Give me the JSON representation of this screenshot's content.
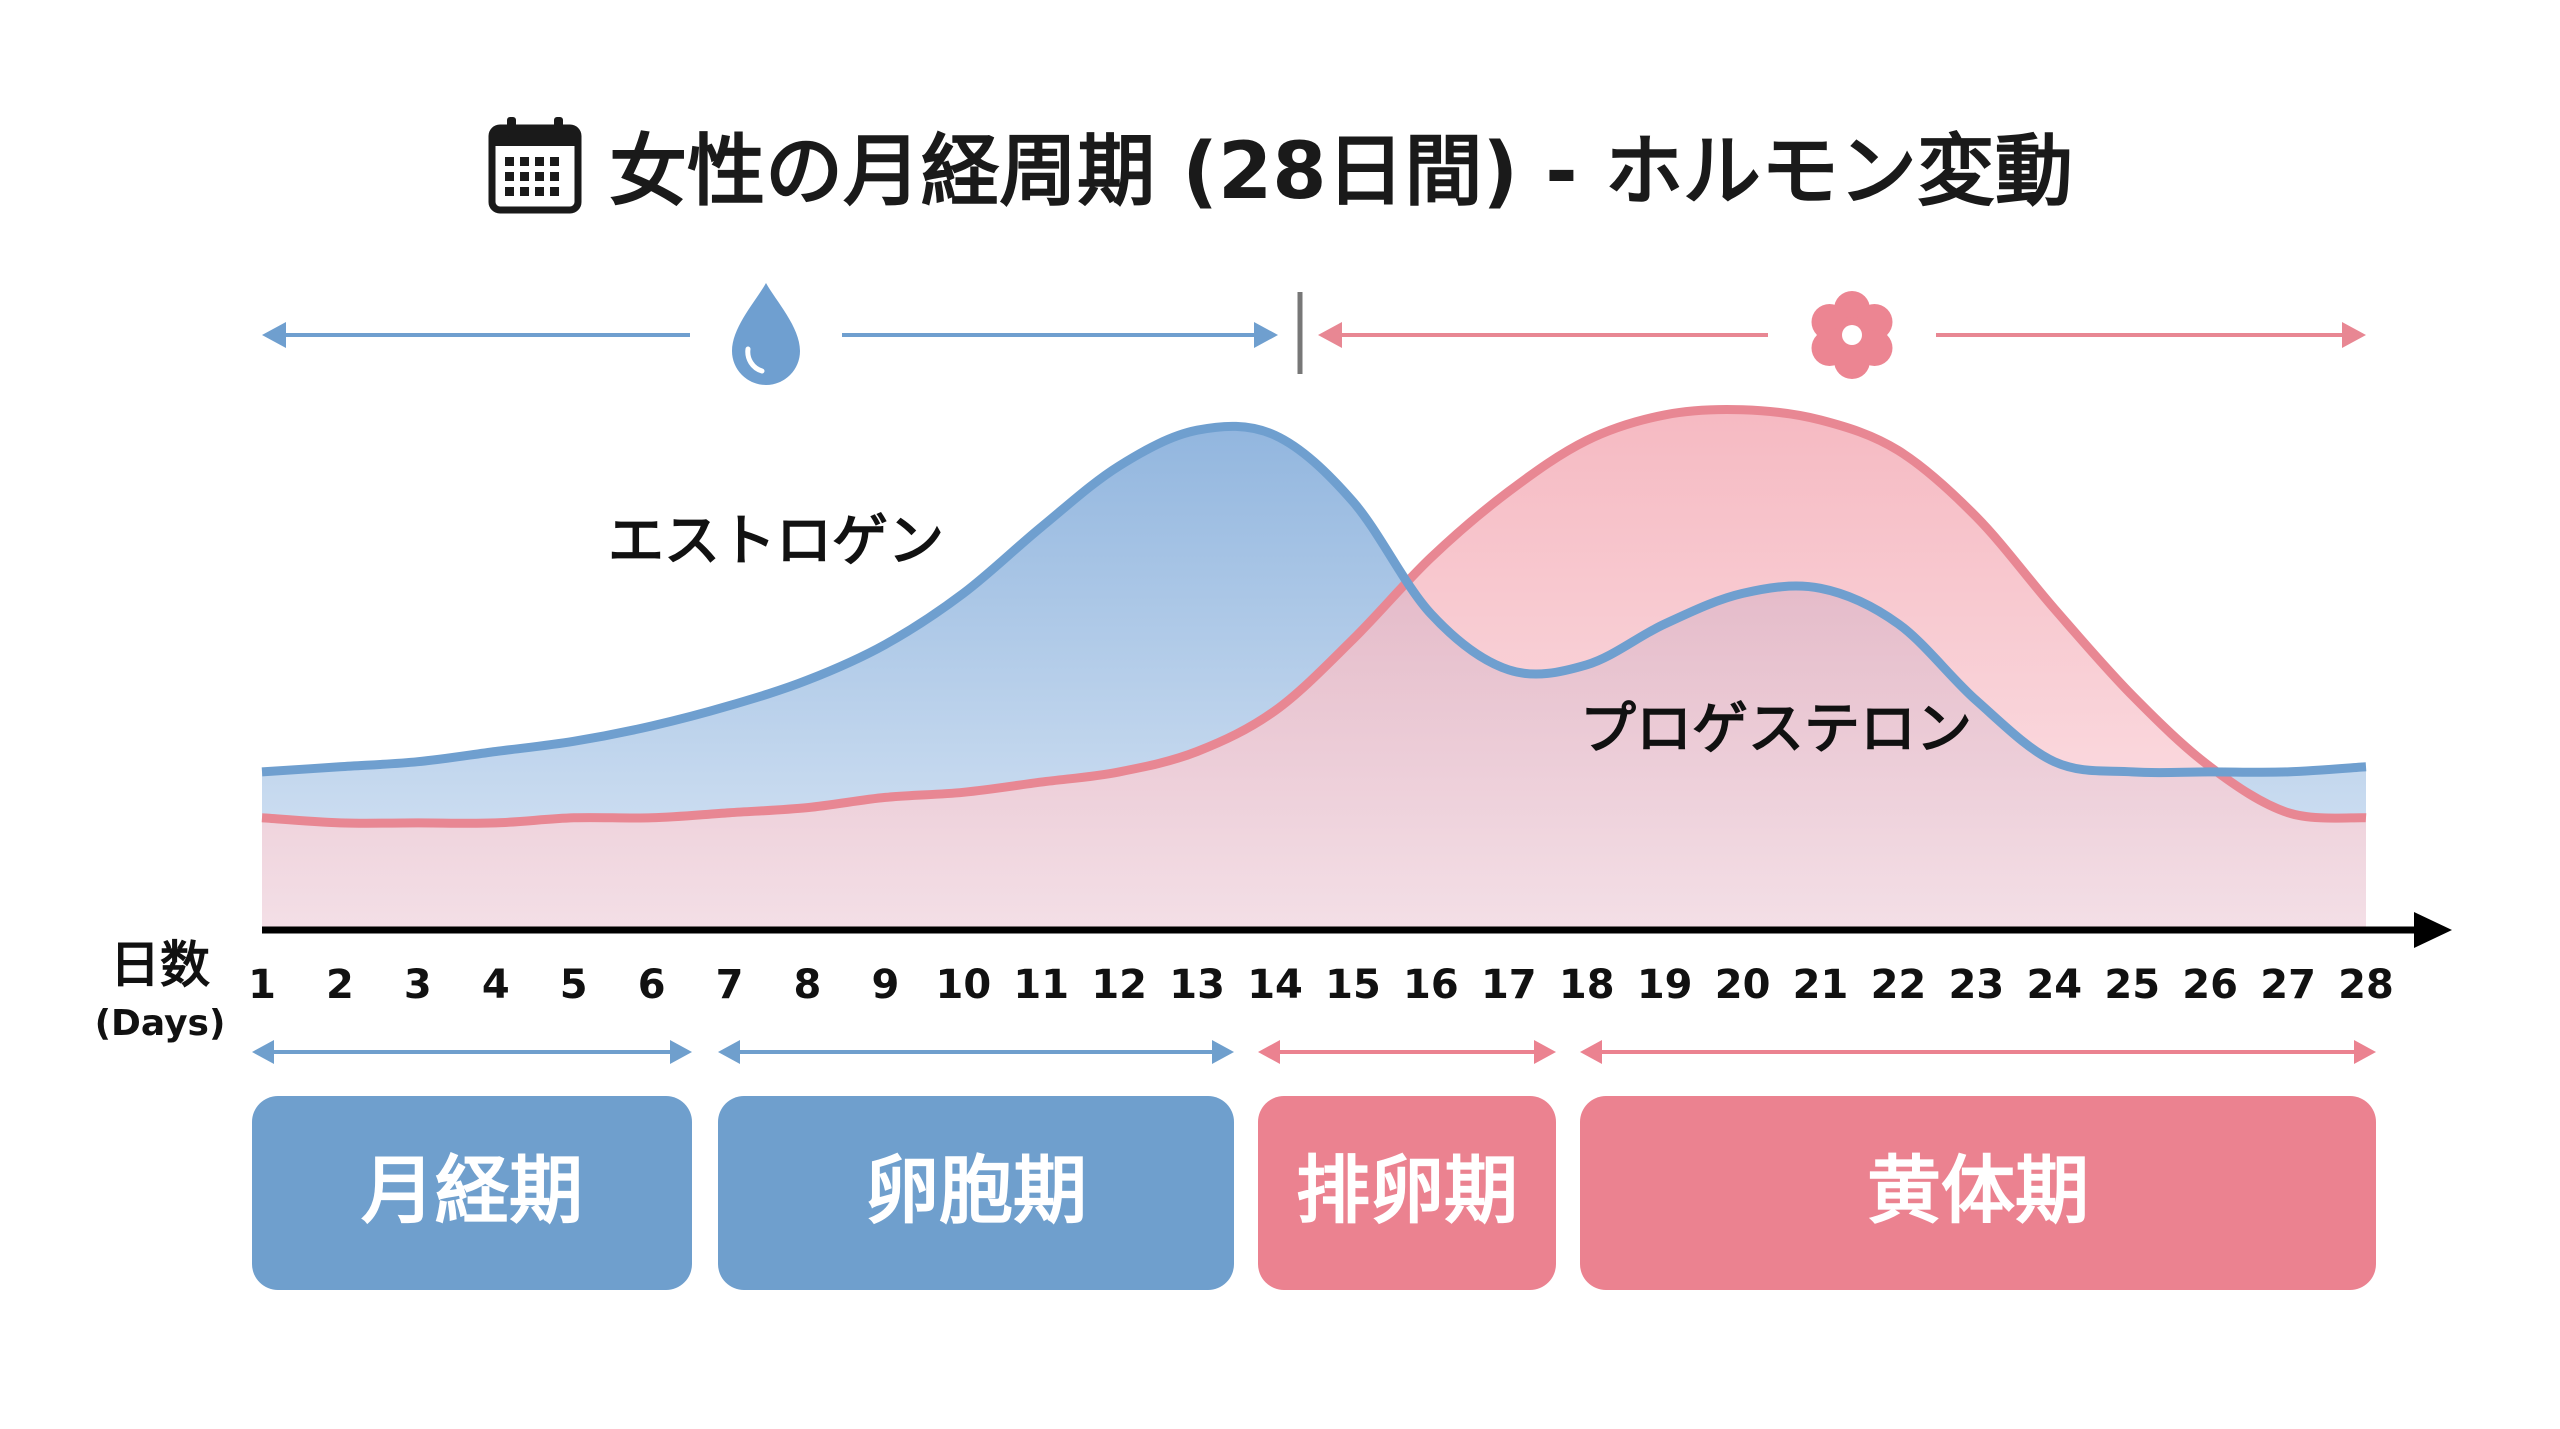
{
  "title": "女性の月経周期 (28日間) - ホルモン変動",
  "icons": {
    "title": "calendar-icon",
    "menstrual_section": "water-drop-icon",
    "luteal_section": "flower-icon"
  },
  "colors": {
    "estrogen": "#6f9fcf",
    "estrogen_fill": "#90b6e0",
    "progesterone": "#e88793",
    "progesterone_fill": "#f4b3bb",
    "blue_box": "#6f9fcd",
    "pink_box": "#eb8290",
    "axis": "#000000"
  },
  "axis": {
    "label": "日数",
    "sublabel": "(Days)"
  },
  "phases": [
    {
      "label": "月経期",
      "start": 1,
      "end": 6,
      "color": "blue"
    },
    {
      "label": "卵胞期",
      "start": 7,
      "end": 13,
      "color": "blue"
    },
    {
      "label": "排卵期",
      "start": 14,
      "end": 17,
      "color": "pink"
    },
    {
      "label": "黄体期",
      "start": 18,
      "end": 28,
      "color": "pink"
    }
  ],
  "chart_data": {
    "type": "area",
    "title": "女性の月経周期 (28日間) - ホルモン変動",
    "xlabel": "日数 (Days)",
    "ylabel": "",
    "x": [
      1,
      2,
      3,
      4,
      5,
      6,
      7,
      8,
      9,
      10,
      11,
      12,
      13,
      14,
      15,
      16,
      17,
      18,
      19,
      20,
      21,
      22,
      23,
      24,
      25,
      26,
      27,
      28
    ],
    "xlim": [
      1,
      28
    ],
    "ylim": [
      0,
      100
    ],
    "series": [
      {
        "name": "エストロゲン",
        "values": [
          31,
          32,
          33,
          35,
          37,
          40,
          44,
          49,
          56,
          66,
          79,
          91,
          98,
          97,
          84,
          62,
          51,
          52,
          60,
          66,
          67,
          60,
          45,
          33,
          31,
          31,
          31,
          32
        ]
      },
      {
        "name": "プロゲステロン",
        "values": [
          22,
          21,
          21,
          21,
          22,
          22,
          23,
          24,
          26,
          27,
          29,
          31,
          35,
          43,
          57,
          73,
          86,
          96,
          101,
          102,
          100,
          94,
          81,
          63,
          46,
          32,
          23,
          22
        ]
      }
    ],
    "grid": false,
    "legend": "inline-labels"
  }
}
